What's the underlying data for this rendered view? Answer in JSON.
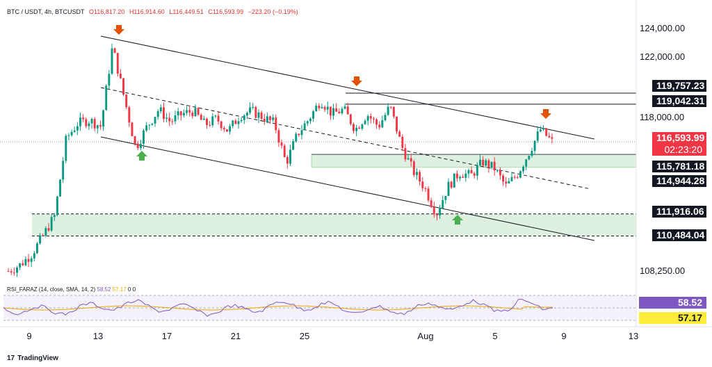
{
  "header": {
    "symbol": "BTC / USDT, 4h, BTCUSDT",
    "open": "O116,817.20",
    "high": "H116,914.60",
    "low": "L116,449.51",
    "close": "C116,593.99",
    "change": "−223.20 (−0.19%)"
  },
  "rsi": {
    "label": "RSI_FARAZ (14, close, SMA, 14, 2)",
    "value1": "58.52",
    "value2": "57.17",
    "extra": "0 0"
  },
  "price_axis": [
    "124,000.00",
    "122,000.00",
    "118,000.00",
    "108,250.00"
  ],
  "time_axis": [
    "9",
    "13",
    "17",
    "21",
    "25",
    "Aug",
    "5",
    "9",
    "13"
  ],
  "price_tags": {
    "current": "116,593.99",
    "countdown": "02:23:20",
    "level_1": "119,757.23",
    "level_2": "119,042.31",
    "level_3": "115,781.18",
    "level_4": "114,944.28",
    "level_5": "111,916.06",
    "level_6": "110,484.04"
  },
  "footer": {
    "logo": "17",
    "brand": "TradingView"
  },
  "colors": {
    "up": "#089981",
    "down": "#f23645",
    "zone": "#c8e6c9",
    "arrow_down": "#e65100",
    "arrow_up": "#4caf50",
    "rsi_line": "#7e57c2",
    "rsi_sma": "#f2a900"
  },
  "chart_data": {
    "type": "candlestick",
    "title": "BTC / USDT, 4h, BTCUSDT",
    "ylim": [
      107000,
      125000
    ],
    "y_ticks": [
      124000,
      122000,
      118000,
      108250
    ],
    "x_ticks": [
      "9",
      "13",
      "17",
      "21",
      "25",
      "Aug",
      "5",
      "9",
      "13"
    ],
    "horizontal_levels": [
      119757.23,
      119042.31,
      115781.18,
      114944.28,
      111916.06,
      110484.04,
      116593.99
    ],
    "support_zones": [
      [
        114944.28,
        115781.18
      ],
      [
        110484.04,
        111916.06
      ]
    ],
    "close_path": [
      108200,
      108600,
      109300,
      110500,
      111800,
      116800,
      117800,
      118000,
      117600,
      122800,
      119500,
      116200,
      117600,
      118700,
      117900,
      118400,
      118600,
      117700,
      118100,
      117300,
      118300,
      118600,
      118200,
      117800,
      115200,
      117100,
      118100,
      119300,
      118400,
      118700,
      117400,
      118400,
      117600,
      118900,
      116300,
      114700,
      113600,
      111900,
      113700,
      114600,
      114400,
      115300,
      114900,
      113700,
      114500,
      115900,
      117400,
      116600
    ],
    "rsi": {
      "value": 58.52,
      "sma": 57.17
    }
  }
}
